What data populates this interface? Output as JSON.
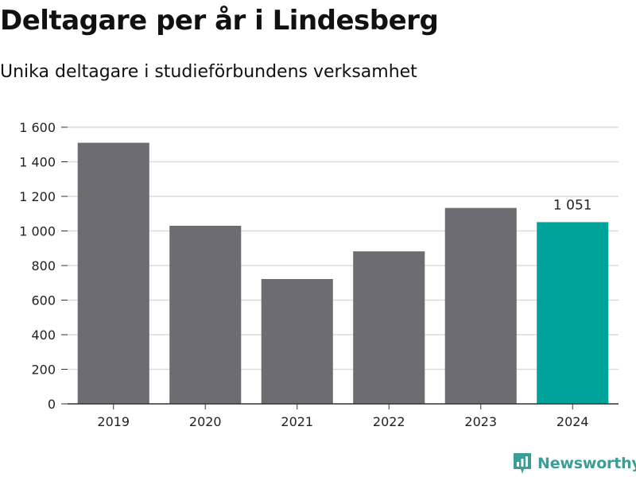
{
  "chart_data": {
    "type": "bar",
    "title": "Deltagare per år i Lindesberg",
    "subtitle": "Unika deltagare i studieförbundens verksamhet",
    "categories": [
      "2019",
      "2020",
      "2021",
      "2022",
      "2023",
      "2024"
    ],
    "values": [
      1510,
      1030,
      722,
      882,
      1133,
      1051
    ],
    "colors": [
      "#6d6c71",
      "#6d6c71",
      "#6d6c71",
      "#6d6c71",
      "#6d6c71",
      "#00a39a"
    ],
    "data_labels": [
      {
        "index": 5,
        "text": "1 051"
      }
    ],
    "y_ticks": [
      0,
      200,
      400,
      600,
      800,
      1000,
      1200,
      1400,
      1600
    ],
    "y_tick_labels": [
      "0",
      "200",
      "400",
      "600",
      "800",
      "1 000",
      "1 200",
      "1 400",
      "1 600"
    ],
    "ylim": [
      0,
      1600
    ],
    "xlabel": "",
    "ylabel": "",
    "grid": true,
    "legend": "none"
  },
  "brand": {
    "name": "Newsworthy",
    "icon": "bar-chart-icon",
    "color": "#3a9e96"
  }
}
